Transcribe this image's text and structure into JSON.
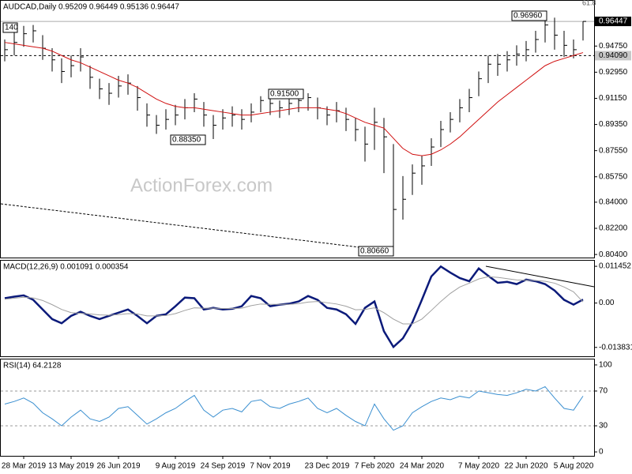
{
  "chart_data": [
    {
      "type": "ohlc",
      "title": "AUDCAD,Daily  0.95209 0.96449 0.95136 0.96447",
      "watermark": "ActionForex.com",
      "categories": [
        null,
        null,
        "28 Mar 2019",
        null,
        null,
        null,
        null,
        "13 May 2019",
        null,
        null,
        null,
        null,
        "26 Jun 2019",
        null,
        null,
        null,
        null,
        null,
        "9 Aug 2019",
        null,
        null,
        null,
        null,
        "24 Sep 2019",
        null,
        null,
        null,
        null,
        "7 Nov 2019",
        null,
        null,
        null,
        null,
        null,
        "23 Dec 2019",
        null,
        null,
        null,
        null,
        "7 Feb 2020",
        null,
        null,
        null,
        null,
        "24 Mar 2020",
        null,
        null,
        null,
        null,
        null,
        "7 May 2020",
        null,
        null,
        null,
        null,
        "22 Jun 2020",
        null,
        null,
        null,
        null,
        "5 Aug 2020",
        null
      ],
      "high": [
        0.952,
        0.957,
        0.9614,
        0.962,
        0.955,
        0.946,
        0.939,
        0.941,
        0.946,
        0.934,
        0.925,
        0.922,
        0.927,
        0.928,
        0.92,
        0.908,
        0.9,
        0.904,
        0.907,
        0.911,
        0.915,
        0.909,
        0.9,
        0.904,
        0.906,
        0.904,
        0.908,
        0.913,
        0.913,
        0.91,
        0.913,
        0.914,
        0.915,
        0.912,
        0.906,
        0.909,
        0.905,
        0.898,
        0.892,
        0.905,
        0.898,
        0.88,
        0.858,
        0.866,
        0.872,
        0.884,
        0.896,
        0.902,
        0.911,
        0.918,
        0.93,
        0.941,
        0.942,
        0.944,
        0.948,
        0.951,
        0.958,
        0.9696,
        0.967,
        0.958,
        0.952,
        0.96449
      ],
      "low": [
        0.937,
        0.941,
        0.947,
        0.95,
        0.938,
        0.93,
        0.922,
        0.926,
        0.93,
        0.918,
        0.911,
        0.907,
        0.912,
        0.914,
        0.903,
        0.892,
        0.887,
        0.89,
        0.893,
        0.897,
        0.902,
        0.892,
        0.8835,
        0.89,
        0.892,
        0.89,
        0.895,
        0.902,
        0.9,
        0.898,
        0.9,
        0.902,
        0.903,
        0.897,
        0.893,
        0.895,
        0.889,
        0.882,
        0.868,
        0.876,
        0.86,
        0.8066,
        0.828,
        0.845,
        0.852,
        0.865,
        0.878,
        0.888,
        0.895,
        0.902,
        0.913,
        0.922,
        0.927,
        0.93,
        0.934,
        0.937,
        0.943,
        0.95,
        0.945,
        0.94,
        0.939,
        0.95136
      ],
      "close": [
        0.945,
        0.95,
        0.956,
        0.958,
        0.946,
        0.938,
        0.93,
        0.934,
        0.94,
        0.926,
        0.918,
        0.915,
        0.92,
        0.922,
        0.912,
        0.9,
        0.893,
        0.897,
        0.9,
        0.905,
        0.911,
        0.9,
        0.893,
        0.898,
        0.9,
        0.897,
        0.902,
        0.91,
        0.908,
        0.905,
        0.908,
        0.91,
        0.912,
        0.905,
        0.9,
        0.903,
        0.897,
        0.89,
        0.88,
        0.895,
        0.885,
        0.835,
        0.842,
        0.86,
        0.865,
        0.878,
        0.89,
        0.897,
        0.905,
        0.912,
        0.925,
        0.935,
        0.935,
        0.938,
        0.942,
        0.945,
        0.952,
        0.962,
        0.955,
        0.948,
        0.945,
        0.96447
      ],
      "color": "#000000",
      "ma": [
        0.95,
        0.949,
        0.948,
        0.947,
        0.946,
        0.944,
        0.941,
        0.938,
        0.936,
        0.933,
        0.93,
        0.927,
        0.924,
        0.922,
        0.919,
        0.915,
        0.911,
        0.908,
        0.906,
        0.905,
        0.905,
        0.904,
        0.903,
        0.902,
        0.901,
        0.9,
        0.9,
        0.901,
        0.902,
        0.903,
        0.904,
        0.905,
        0.905,
        0.905,
        0.904,
        0.903,
        0.901,
        0.898,
        0.895,
        0.893,
        0.891,
        0.884,
        0.877,
        0.873,
        0.872,
        0.873,
        0.876,
        0.88,
        0.885,
        0.891,
        0.897,
        0.903,
        0.909,
        0.914,
        0.919,
        0.924,
        0.929,
        0.934,
        0.937,
        0.939,
        0.941,
        0.943
      ],
      "ma_color": "#d01010",
      "ylim": [
        0.80189,
        0.97866
      ],
      "yticks": [
        {
          "value": 0.9475,
          "label": "0.94750"
        },
        {
          "value": 0.9295,
          "label": "0.92950"
        },
        {
          "value": 0.9115,
          "label": "0.91150"
        },
        {
          "value": 0.8935,
          "label": "0.89350"
        },
        {
          "value": 0.8755,
          "label": "0.87550"
        },
        {
          "value": 0.8575,
          "label": "0.85750"
        },
        {
          "value": 0.84,
          "label": "0.84000"
        },
        {
          "value": 0.822,
          "label": "0.82200"
        },
        {
          "value": 0.804,
          "label": "0.80400"
        }
      ],
      "last_price": {
        "value": 0.96447,
        "label": "0.96447"
      },
      "level": {
        "value": 0.9409,
        "label": "0.94090"
      },
      "fib_label": "61.8",
      "annotations": [
        "140",
        "0.96960",
        "0.91500",
        "0.88350",
        "0.80660"
      ]
    },
    {
      "type": "line",
      "title": "MACD(12,26,9) 0.001091 0.000354",
      "series": [
        {
          "color": "#0b1a7a",
          "values": [
            0.0015,
            0.002,
            0.0024,
            0.001,
            -0.002,
            -0.005,
            -0.0063,
            -0.004,
            -0.0027,
            -0.004,
            -0.005,
            -0.004,
            -0.003,
            -0.002,
            -0.004,
            -0.0063,
            -0.004,
            -0.0035,
            -0.001,
            0.0017,
            0.0015,
            -0.002,
            -0.0015,
            -0.002,
            -0.0018,
            -0.001,
            0.0022,
            0.0015,
            -0.001,
            -0.0005,
            -0.0002,
            0.0005,
            0.0022,
            0.001,
            -0.0015,
            -0.002,
            -0.0035,
            -0.0065,
            -0.0015,
            0.0005,
            -0.0088,
            -0.0137,
            -0.011,
            -0.006,
            0.001,
            0.0083,
            0.0114,
            0.0095,
            0.0078,
            0.0068,
            0.0108,
            0.0085,
            0.0063,
            0.0066,
            0.0059,
            0.0073,
            0.0068,
            0.0059,
            0.0039,
            0.001,
            -0.0005,
            0.001091
          ]
        },
        {
          "color": "#a0a0a0",
          "values": [
            0.0012,
            0.0015,
            0.0018,
            0.0016,
            0.0008,
            -0.0005,
            -0.002,
            -0.003,
            -0.0032,
            -0.0034,
            -0.0037,
            -0.0038,
            -0.0036,
            -0.0033,
            -0.0034,
            -0.004,
            -0.004,
            -0.0039,
            -0.0033,
            -0.0023,
            -0.0015,
            -0.0016,
            -0.0016,
            -0.0017,
            -0.0017,
            -0.0016,
            -0.0008,
            -0.0003,
            -0.0004,
            -0.0004,
            -0.0004,
            -0.0002,
            0.0003,
            0.0005,
            0.0001,
            -0.0003,
            -0.001,
            -0.0021,
            -0.002,
            -0.0015,
            -0.003,
            -0.005,
            -0.0065,
            -0.0065,
            -0.005,
            -0.0023,
            0.0005,
            0.003,
            0.005,
            0.0062,
            0.0075,
            0.0082,
            0.008,
            0.0076,
            0.0072,
            0.0071,
            0.007,
            0.0068,
            0.0062,
            0.005,
            0.0035,
            0.000354
          ]
        }
      ],
      "ylim": [
        -0.0166,
        0.0132
      ],
      "yticks": [
        {
          "value": 0.011452,
          "label": "0.011452"
        },
        {
          "value": 0,
          "label": "0.00"
        },
        {
          "value": -0.013831,
          "label": "-0.013831"
        }
      ]
    },
    {
      "type": "line",
      "title": "RSI(14) 64.2128",
      "series": [
        {
          "color": "#3a8fd0",
          "values": [
            55,
            58,
            62,
            56,
            45,
            38,
            30,
            40,
            48,
            38,
            35,
            40,
            50,
            52,
            42,
            32,
            38,
            45,
            50,
            58,
            65,
            48,
            40,
            48,
            50,
            46,
            58,
            60,
            52,
            50,
            55,
            58,
            62,
            50,
            45,
            50,
            42,
            35,
            30,
            55,
            38,
            25,
            30,
            45,
            52,
            58,
            62,
            60,
            64,
            62,
            70,
            68,
            66,
            65,
            68,
            72,
            70,
            75,
            62,
            50,
            48,
            64.2128
          ]
        }
      ],
      "ylim": [
        -4.5,
        106.3
      ],
      "yticks": [
        100,
        70,
        30,
        0
      ],
      "levels": [
        70,
        30
      ]
    }
  ]
}
